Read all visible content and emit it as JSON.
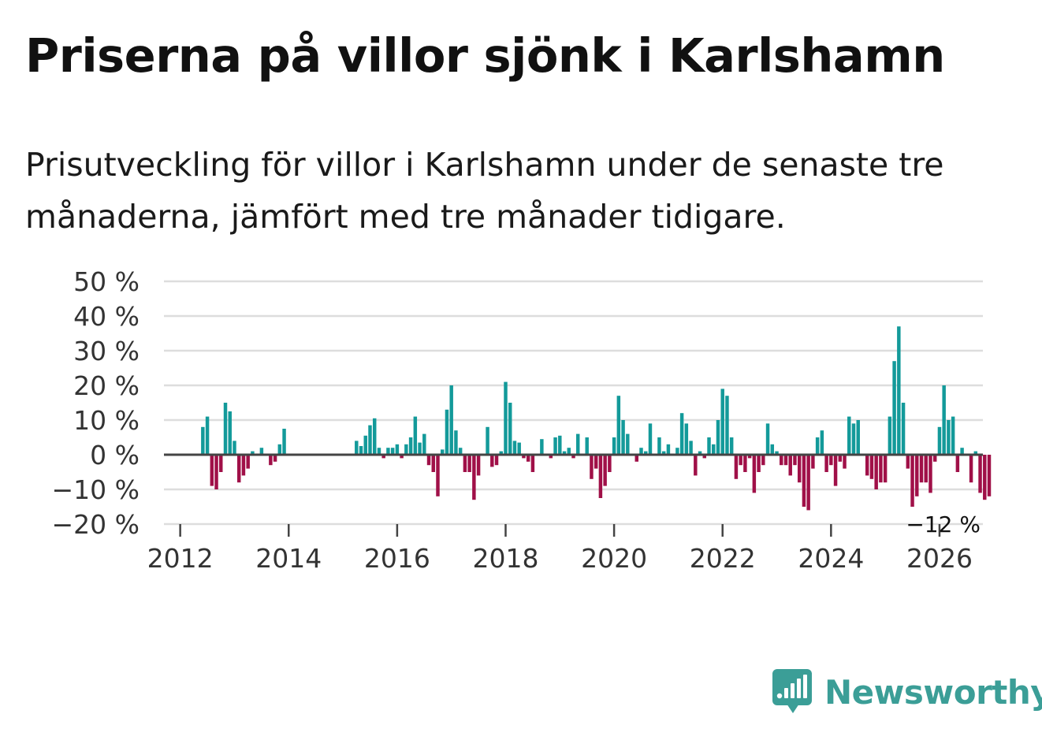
{
  "title": "Priserna på villor sjönk i Karlshamn",
  "subtitle": "Prisutveckling för villor i Karlshamn under de senaste tre månaderna, jämfört med tre månader tidigare.",
  "brand": {
    "name": "Newsworthy",
    "icon": "newsworthy-logo-icon",
    "color": "#3b9e97"
  },
  "colors": {
    "positive": "#139a9a",
    "negative": "#a01048",
    "grid": "#dddddd",
    "zero": "#444444"
  },
  "chart_data": {
    "type": "bar",
    "title": "Priserna på villor sjönk i Karlshamn",
    "xlabel": "",
    "ylabel": "",
    "ylim": [
      -20,
      50
    ],
    "yticks": [
      50,
      40,
      30,
      20,
      10,
      0,
      -10,
      -20
    ],
    "ytick_labels": [
      "50 %",
      "40 %",
      "30 %",
      "20 %",
      "10 %",
      "0 %",
      "−10 %",
      "−20 %"
    ],
    "xticks": [
      2012,
      2014,
      2016,
      2018,
      2020,
      2022,
      2024,
      2026
    ],
    "xtick_labels": [
      "2012",
      "2014",
      "2016",
      "2018",
      "2020",
      "2022",
      "2024",
      "2026"
    ],
    "xlim": [
      2011.7,
      2026.8
    ],
    "start": 2012.417,
    "step": 0.08333,
    "values": [
      8,
      11,
      -9,
      -10,
      -5,
      15,
      12.5,
      4,
      -8,
      -6,
      -4,
      1,
      0,
      2,
      0,
      -3,
      -2,
      3,
      7.5,
      0,
      0,
      0,
      0,
      0,
      0,
      0,
      0,
      0,
      0,
      0,
      0,
      0,
      0,
      0,
      4,
      2.5,
      5.5,
      8.5,
      10.5,
      2,
      -1,
      2,
      2,
      3,
      -1,
      3,
      5,
      11,
      3.5,
      6,
      -3,
      -5,
      -12,
      1.5,
      13,
      20,
      7,
      2,
      -5,
      -5,
      -13,
      -6,
      0,
      8,
      -3.5,
      -3,
      1,
      21,
      15,
      4,
      3.5,
      -1,
      -2,
      -5,
      0,
      4.5,
      0,
      -1,
      5,
      5.5,
      1,
      2,
      -1,
      6,
      0,
      5,
      -7,
      -4,
      -12.5,
      -9,
      -5,
      5,
      17,
      10,
      6,
      0,
      -2,
      2,
      1,
      9,
      0,
      5,
      1,
      3,
      0,
      2,
      12,
      9,
      4,
      -6,
      1,
      -1,
      5,
      3,
      10,
      19,
      17,
      5,
      -7,
      -3,
      -5,
      -1,
      -11,
      -5,
      -3,
      9,
      3,
      1,
      -3,
      -3,
      -6,
      -3,
      -8,
      -15,
      -16,
      -4,
      5,
      7,
      -5,
      -3,
      -9,
      -2,
      -4,
      11,
      9,
      10,
      0,
      -6,
      -7,
      -10,
      -8,
      -8,
      11,
      27,
      37,
      15,
      -4,
      -15,
      -12,
      -8,
      -8,
      -11,
      -2,
      8,
      20,
      10,
      11,
      -5,
      2,
      0,
      -8,
      1,
      -11,
      -13,
      -12
    ],
    "annotations": [
      {
        "text": "−12 %",
        "x": 2026.0,
        "y": -12
      }
    ]
  }
}
